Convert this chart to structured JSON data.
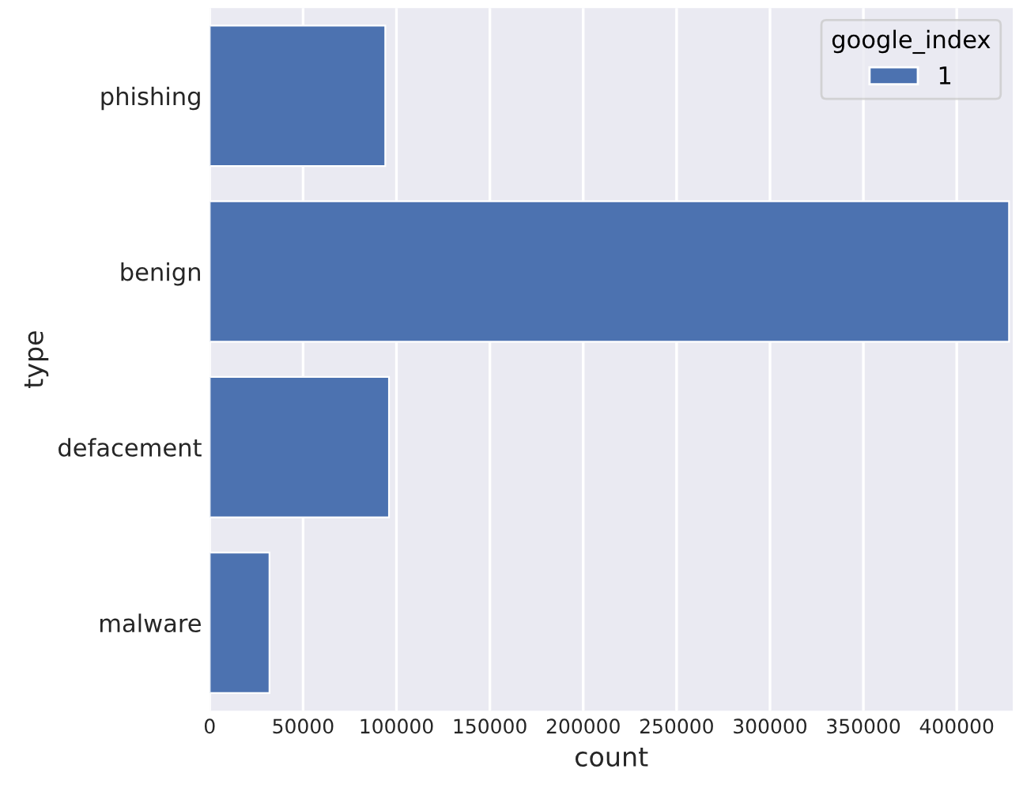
{
  "chart_data": {
    "type": "bar",
    "orientation": "horizontal",
    "xlabel": "count",
    "ylabel": "type",
    "legend_title": "google_index",
    "categories": [
      "phishing",
      "benign",
      "defacement",
      "malware"
    ],
    "series": [
      {
        "name": "1",
        "color": "#4c72b0",
        "values": [
          94000,
          428000,
          96000,
          32000
        ]
      }
    ],
    "xlim": [
      0,
      430000
    ],
    "xticks": [
      0,
      50000,
      100000,
      150000,
      200000,
      250000,
      300000,
      350000,
      400000
    ],
    "grid": "x",
    "legend": "top right"
  }
}
